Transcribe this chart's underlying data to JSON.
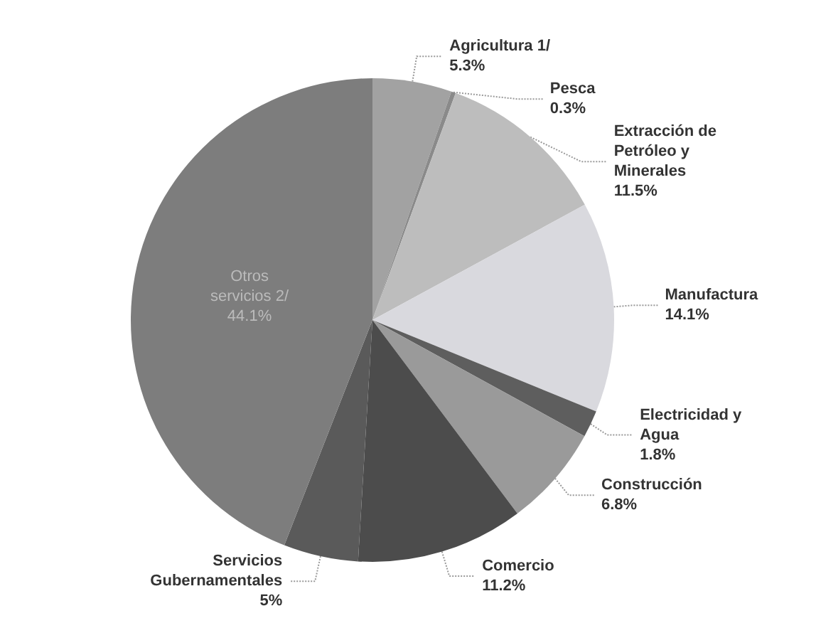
{
  "chart_data": {
    "type": "pie",
    "categories": [
      "Agricultura 1/",
      "Pesca",
      "Extracción de\nPetróleo y\nMinerales",
      "Manufactura",
      "Electricidad y\nAgua",
      "Construcción",
      "Comercio",
      "Servicios\nGubernamentales",
      "Otros\nservicios 2/"
    ],
    "values": [
      5.3,
      0.3,
      11.5,
      14.1,
      1.8,
      6.8,
      11.2,
      5,
      44.1
    ],
    "value_labels": [
      "5.3%",
      "0.3%",
      "11.5%",
      "14.1%",
      "1.8%",
      "6.8%",
      "11.2%",
      "5%",
      "44.1%"
    ],
    "colors": [
      "#a2a2a2",
      "#8a8a8a",
      "#bdbdbd",
      "#d9d9de",
      "#5e5e5e",
      "#9a9a9a",
      "#4c4c4c",
      "#5a5a5a",
      "#7d7d7d"
    ],
    "legend": false
  }
}
